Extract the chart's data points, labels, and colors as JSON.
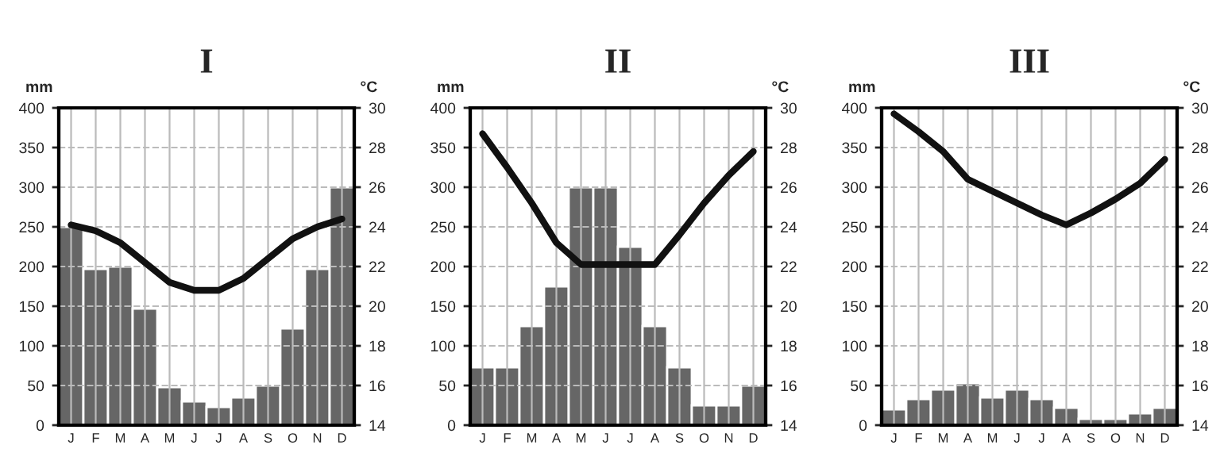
{
  "chart_data": [
    {
      "type": "bar",
      "title": "I",
      "ylabel": "mm",
      "y2label": "°C",
      "categories": [
        "J",
        "F",
        "M",
        "A",
        "M",
        "J",
        "J",
        "A",
        "S",
        "O",
        "N",
        "D"
      ],
      "ylim": [
        0,
        400
      ],
      "yticks": [
        0,
        50,
        100,
        150,
        200,
        250,
        300,
        350,
        400
      ],
      "y2lim": [
        14,
        30
      ],
      "y2ticks": [
        14,
        16,
        18,
        20,
        22,
        24,
        26,
        28,
        30
      ],
      "grid": true,
      "series": [
        {
          "color": "#666666",
          "values": [
            250,
            197,
            200,
            147,
            48,
            30,
            23,
            35,
            50,
            122,
            197,
            300
          ]
        },
        {
          "type": "line",
          "axis": "y2",
          "color": "#111111",
          "values": [
            24.1,
            23.8,
            23.2,
            22.2,
            21.2,
            20.8,
            20.8,
            21.4,
            22.4,
            23.4,
            24.0,
            24.4
          ]
        }
      ]
    },
    {
      "type": "bar",
      "title": "II",
      "ylabel": "mm",
      "y2label": "°C",
      "categories": [
        "J",
        "F",
        "M",
        "A",
        "M",
        "J",
        "J",
        "A",
        "S",
        "O",
        "N",
        "D"
      ],
      "ylim": [
        0,
        400
      ],
      "yticks": [
        0,
        50,
        100,
        150,
        200,
        250,
        300,
        350,
        400
      ],
      "y2lim": [
        14,
        30
      ],
      "y2ticks": [
        14,
        16,
        18,
        20,
        22,
        24,
        26,
        28,
        30
      ],
      "grid": true,
      "series": [
        {
          "color": "#666666",
          "values": [
            73,
            73,
            125,
            175,
            300,
            300,
            225,
            125,
            73,
            25,
            25,
            50
          ]
        },
        {
          "type": "line",
          "axis": "y2",
          "color": "#111111",
          "values": [
            28.7,
            27.0,
            25.2,
            23.2,
            22.1,
            22.1,
            22.1,
            22.1,
            23.6,
            25.2,
            26.6,
            27.8
          ]
        }
      ]
    },
    {
      "type": "bar",
      "title": "III",
      "ylabel": "mm",
      "y2label": "°C",
      "categories": [
        "J",
        "F",
        "M",
        "A",
        "M",
        "J",
        "J",
        "A",
        "S",
        "O",
        "N",
        "D"
      ],
      "ylim": [
        0,
        400
      ],
      "yticks": [
        0,
        50,
        100,
        150,
        200,
        250,
        300,
        350,
        400
      ],
      "y2lim": [
        14,
        30
      ],
      "y2ticks": [
        14,
        16,
        18,
        20,
        22,
        24,
        26,
        28,
        30
      ],
      "grid": true,
      "series": [
        {
          "color": "#666666",
          "values": [
            20,
            33,
            45,
            53,
            35,
            45,
            33,
            22,
            8,
            8,
            15,
            22
          ]
        },
        {
          "type": "line",
          "axis": "y2",
          "color": "#111111",
          "values": [
            29.7,
            28.8,
            27.8,
            26.4,
            25.8,
            25.2,
            24.6,
            24.1,
            24.7,
            25.4,
            26.2,
            27.4
          ]
        }
      ]
    }
  ]
}
